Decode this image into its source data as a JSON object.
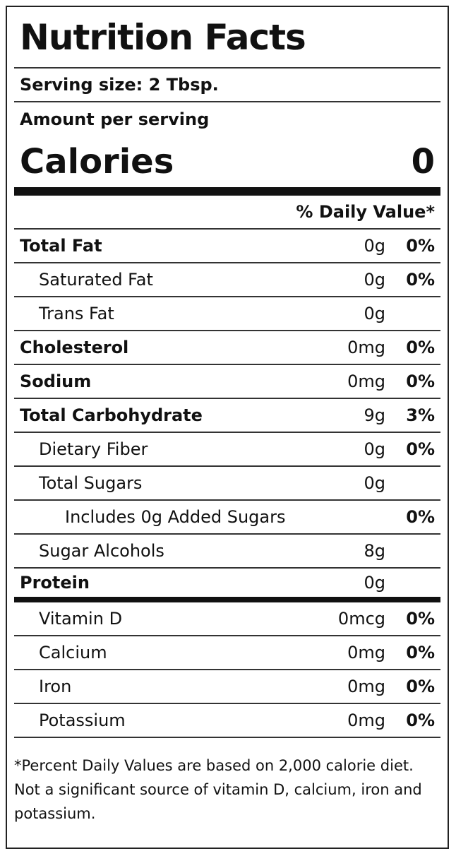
{
  "header": {
    "title": "Nutrition Facts",
    "serving_size": "Serving size: 2 Tbsp.",
    "amount_per_serving": "Amount per serving",
    "calories_label": "Calories",
    "calories_value": "0",
    "daily_value_header": "% Daily Value*"
  },
  "nutrients": [
    {
      "name": "Total Fat",
      "amount": "0g",
      "dv": "0%"
    },
    {
      "name": "Saturated Fat",
      "amount": "0g",
      "dv": "0%"
    },
    {
      "name": "Trans Fat",
      "amount": "0g"
    },
    {
      "name": "Cholesterol",
      "amount": "0mg",
      "dv": "0%"
    },
    {
      "name": "Sodium",
      "amount": "0mg",
      "dv": "0%"
    },
    {
      "name": "Total Carbohydrate",
      "amount": "9g",
      "dv": "3%"
    },
    {
      "name": "Dietary Fiber",
      "amount": "0g",
      "dv": "0%"
    },
    {
      "name": "Total Sugars",
      "amount": "0g"
    },
    {
      "name": "Includes 0g Added Sugars",
      "dv": "0%"
    },
    {
      "name": "Sugar Alcohols",
      "amount": "8g"
    },
    {
      "name": "Protein",
      "amount": "0g"
    }
  ],
  "vitamins": [
    {
      "name": "Vitamin D",
      "amount": "0mcg",
      "dv": "0%"
    },
    {
      "name": "Calcium",
      "amount": "0mg",
      "dv": "0%"
    },
    {
      "name": "Iron",
      "amount": "0mg",
      "dv": "0%"
    },
    {
      "name": "Potassium",
      "amount": "0mg",
      "dv": "0%"
    }
  ],
  "footnote": "*Percent Daily Values are based on 2,000 calorie diet. Not a significant source of vitamin D, calcium, iron and potassium."
}
